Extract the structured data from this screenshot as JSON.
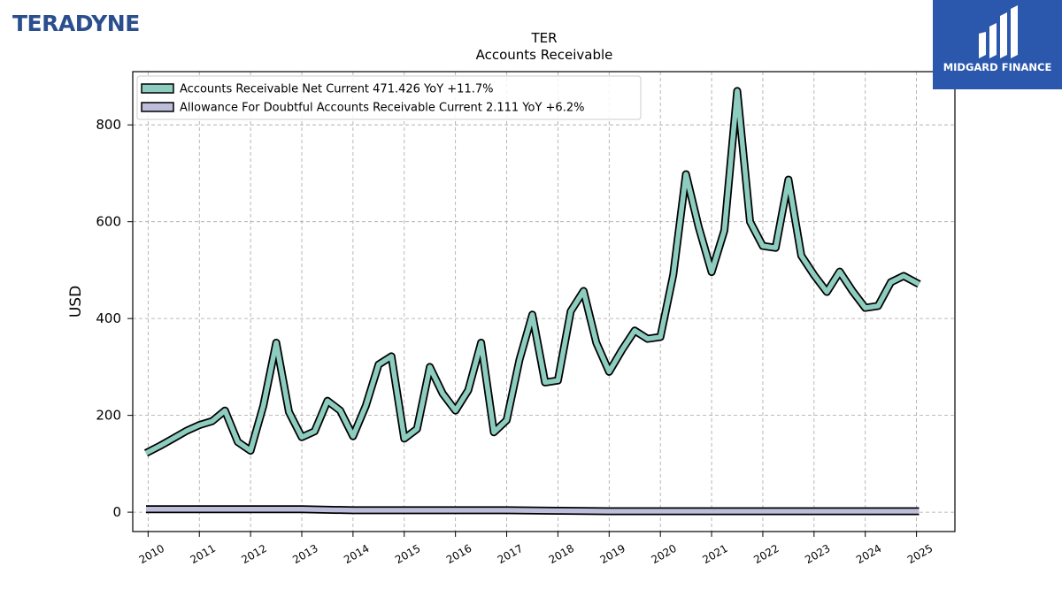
{
  "brand": {
    "company_logo_text": "TERADYNE",
    "badge_text": "MIDGARD FINANCE"
  },
  "colors": {
    "net_current": "#8dcdbf",
    "allowance": "#bcbcdb",
    "outline": "#000000",
    "grid": "#a6a6a6",
    "badge_bg": "#2b58ad",
    "logo": "#2b4f8e"
  },
  "chart_data": {
    "type": "line",
    "title": "TER",
    "subtitle": "Accounts Receivable",
    "xlabel": "",
    "ylabel": "USD",
    "xlim": [
      2009.7,
      2025.75
    ],
    "ylim": [
      -40,
      910
    ],
    "yticks": [
      0,
      200,
      400,
      600,
      800
    ],
    "xticks": [
      "2010",
      "2011",
      "2012",
      "2013",
      "2014",
      "2015",
      "2016",
      "2017",
      "2018",
      "2019",
      "2020",
      "2021",
      "2022",
      "2023",
      "2024",
      "2025"
    ],
    "grid": true,
    "legend_position": "top-left",
    "series": [
      {
        "name": "Accounts Receivable Net Current",
        "legend": "Accounts Receivable Net Current  471.426 YoY +11.7%",
        "x": [
          2009.96,
          2010.25,
          2010.5,
          2010.75,
          2011.0,
          2011.25,
          2011.5,
          2011.75,
          2012.0,
          2012.25,
          2012.5,
          2012.75,
          2013.0,
          2013.25,
          2013.5,
          2013.75,
          2014.0,
          2014.25,
          2014.5,
          2014.75,
          2015.0,
          2015.25,
          2015.5,
          2015.75,
          2016.0,
          2016.25,
          2016.5,
          2016.75,
          2017.0,
          2017.25,
          2017.5,
          2017.75,
          2018.0,
          2018.25,
          2018.5,
          2018.75,
          2019.0,
          2019.25,
          2019.5,
          2019.75,
          2020.0,
          2020.25,
          2020.5,
          2020.75,
          2021.0,
          2021.25,
          2021.5,
          2021.75,
          2022.0,
          2022.25,
          2022.5,
          2022.75,
          2023.0,
          2023.25,
          2023.5,
          2023.75,
          2024.0,
          2024.25,
          2024.5,
          2024.75,
          2025.05
        ],
        "values": [
          122,
          138,
          153,
          168,
          180,
          188,
          210,
          145,
          127,
          220,
          350,
          207,
          155,
          167,
          230,
          210,
          157,
          220,
          305,
          322,
          152,
          172,
          300,
          245,
          210,
          252,
          350,
          165,
          190,
          315,
          408,
          268,
          272,
          415,
          457,
          350,
          290,
          335,
          375,
          358,
          362,
          490,
          698,
          588,
          496,
          582,
          870,
          600,
          550,
          546,
          687,
          530,
          490,
          455,
          497,
          457,
          422,
          426,
          475,
          488,
          471
        ]
      },
      {
        "name": "Allowance For Doubtful Accounts Receivable Current",
        "legend": "Allowance For Doubtful Accounts Receivable Current  2.111 YoY +6.2%",
        "x": [
          2009.96,
          2011.0,
          2012.0,
          2013.0,
          2014.0,
          2015.0,
          2016.0,
          2017.0,
          2018.0,
          2019.0,
          2020.0,
          2021.0,
          2022.0,
          2023.0,
          2024.0,
          2025.05
        ],
        "values": [
          6,
          6,
          6,
          6,
          4,
          4,
          4,
          4,
          3,
          2,
          2,
          2,
          2,
          2,
          2,
          2
        ]
      }
    ]
  }
}
